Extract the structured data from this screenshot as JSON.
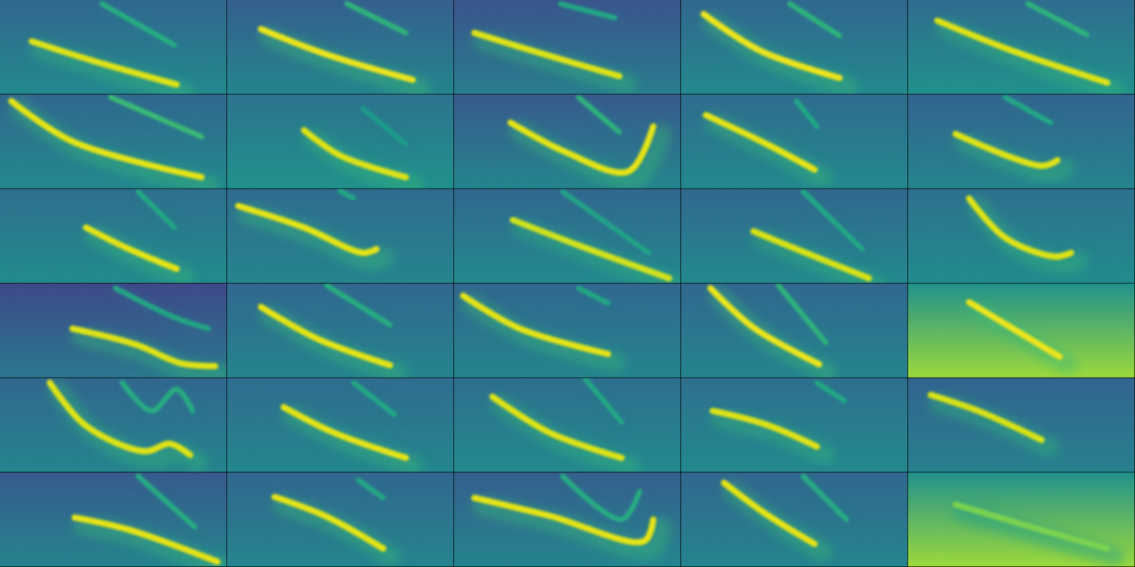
{
  "chart_data": {
    "type": "spectrogram_grid",
    "columns": 5,
    "xlim": [
      0,
      1
    ],
    "ylim": [
      0,
      1
    ],
    "clim": [
      0,
      1
    ],
    "tick_labels": false,
    "panels": [
      {
        "ground": [
          0.33,
          0.47
        ],
        "traces": [
          {
            "intensity": 0.95,
            "x": [
              0.14,
              0.4,
              0.78
            ],
            "y": [
              0.56,
              0.36,
              0.1
            ]
          },
          {
            "intensity": 0.62,
            "x": [
              0.45,
              0.77
            ],
            "y": [
              0.96,
              0.52
            ]
          }
        ]
      },
      {
        "ground": [
          0.3,
          0.45
        ],
        "traces": [
          {
            "intensity": 0.97,
            "x": [
              0.15,
              0.44,
              0.82
            ],
            "y": [
              0.69,
              0.42,
              0.15
            ]
          },
          {
            "intensity": 0.65,
            "x": [
              0.53,
              0.79
            ],
            "y": [
              0.96,
              0.65
            ]
          }
        ]
      },
      {
        "ground": [
          0.26,
          0.42
        ],
        "traces": [
          {
            "intensity": 0.95,
            "x": [
              0.09,
              0.4,
              0.73
            ],
            "y": [
              0.65,
              0.42,
              0.19
            ]
          },
          {
            "intensity": 0.6,
            "x": [
              0.47,
              0.71
            ],
            "y": [
              0.96,
              0.81
            ]
          }
        ]
      },
      {
        "ground": [
          0.33,
          0.47
        ],
        "traces": [
          {
            "intensity": 0.97,
            "x": [
              0.1,
              0.35,
              0.7
            ],
            "y": [
              0.85,
              0.46,
              0.17
            ]
          },
          {
            "intensity": 0.65,
            "x": [
              0.48,
              0.7
            ],
            "y": [
              0.96,
              0.62
            ]
          }
        ]
      },
      {
        "ground": [
          0.35,
          0.5
        ],
        "traces": [
          {
            "intensity": 0.95,
            "x": [
              0.13,
              0.46,
              0.88
            ],
            "y": [
              0.78,
              0.46,
              0.12
            ]
          },
          {
            "intensity": 0.65,
            "x": [
              0.53,
              0.79
            ],
            "y": [
              0.96,
              0.63
            ]
          }
        ]
      },
      {
        "ground": [
          0.33,
          0.47
        ],
        "traces": [
          {
            "intensity": 0.96,
            "x": [
              0.05,
              0.32,
              0.89
            ],
            "y": [
              0.93,
              0.5,
              0.12
            ]
          },
          {
            "intensity": 0.68,
            "x": [
              0.49,
              0.89
            ],
            "y": [
              0.97,
              0.55
            ]
          }
        ]
      },
      {
        "ground": [
          0.38,
          0.5
        ],
        "traces": [
          {
            "intensity": 0.95,
            "x": [
              0.34,
              0.5,
              0.79
            ],
            "y": [
              0.62,
              0.35,
              0.12
            ]
          },
          {
            "intensity": 0.55,
            "x": [
              0.6,
              0.79
            ],
            "y": [
              0.85,
              0.47
            ]
          }
        ]
      },
      {
        "ground": [
          0.28,
          0.45
        ],
        "traces": [
          {
            "intensity": 0.96,
            "x": [
              0.25,
              0.49,
              0.77,
              0.88
            ],
            "y": [
              0.7,
              0.39,
              0.18,
              0.66
            ]
          },
          {
            "intensity": 0.65,
            "x": [
              0.55,
              0.73
            ],
            "y": [
              0.97,
              0.6
            ]
          }
        ]
      },
      {
        "ground": [
          0.35,
          0.47
        ],
        "traces": [
          {
            "intensity": 0.96,
            "x": [
              0.11,
              0.38,
              0.59
            ],
            "y": [
              0.78,
              0.47,
              0.2
            ]
          },
          {
            "intensity": 0.6,
            "x": [
              0.51,
              0.6
            ],
            "y": [
              0.93,
              0.66
            ]
          }
        ]
      },
      {
        "ground": [
          0.32,
          0.45
        ],
        "traces": [
          {
            "intensity": 0.95,
            "x": [
              0.21,
              0.59,
              0.66
            ],
            "y": [
              0.58,
              0.24,
              0.3
            ]
          },
          {
            "intensity": 0.6,
            "x": [
              0.43,
              0.63
            ],
            "y": [
              0.97,
              0.7
            ]
          }
        ]
      },
      {
        "ground": [
          0.36,
          0.48
        ],
        "traces": [
          {
            "intensity": 0.96,
            "x": [
              0.38,
              0.57,
              0.78
            ],
            "y": [
              0.59,
              0.36,
              0.15
            ]
          },
          {
            "intensity": 0.6,
            "x": [
              0.61,
              0.77
            ],
            "y": [
              0.97,
              0.59
            ]
          }
        ]
      },
      {
        "ground": [
          0.35,
          0.45
        ],
        "traces": [
          {
            "intensity": 0.96,
            "x": [
              0.05,
              0.34,
              0.6,
              0.66
            ],
            "y": [
              0.82,
              0.59,
              0.32,
              0.36
            ]
          },
          {
            "intensity": 0.6,
            "x": [
              0.5,
              0.56
            ],
            "y": [
              0.98,
              0.9
            ]
          }
        ]
      },
      {
        "ground": [
          0.33,
          0.47
        ],
        "traces": [
          {
            "intensity": 0.93,
            "x": [
              0.26,
              0.55,
              0.95
            ],
            "y": [
              0.67,
              0.4,
              0.05
            ]
          },
          {
            "intensity": 0.58,
            "x": [
              0.48,
              0.86
            ],
            "y": [
              0.97,
              0.32
            ]
          }
        ]
      },
      {
        "ground": [
          0.33,
          0.47
        ],
        "traces": [
          {
            "intensity": 0.94,
            "x": [
              0.32,
              0.51,
              0.83
            ],
            "y": [
              0.55,
              0.36,
              0.05
            ]
          },
          {
            "intensity": 0.6,
            "x": [
              0.54,
              0.8
            ],
            "y": [
              0.97,
              0.36
            ]
          }
        ]
      },
      {
        "ground": [
          0.37,
          0.48
        ],
        "traces": [
          {
            "intensity": 0.95,
            "x": [
              0.27,
              0.43,
              0.65,
              0.72
            ],
            "y": [
              0.9,
              0.48,
              0.28,
              0.32
            ]
          }
        ]
      },
      {
        "ground": [
          0.22,
          0.4
        ],
        "traces": [
          {
            "intensity": 0.95,
            "x": [
              0.32,
              0.6,
              0.8,
              0.95
            ],
            "y": [
              0.52,
              0.35,
              0.15,
              0.12
            ]
          },
          {
            "intensity": 0.6,
            "x": [
              0.51,
              0.77,
              0.92
            ],
            "y": [
              0.95,
              0.64,
              0.52
            ]
          }
        ]
      },
      {
        "ground": [
          0.33,
          0.45
        ],
        "traces": [
          {
            "intensity": 0.96,
            "x": [
              0.15,
              0.4,
              0.72
            ],
            "y": [
              0.75,
              0.41,
              0.13
            ]
          },
          {
            "intensity": 0.62,
            "x": [
              0.44,
              0.72
            ],
            "y": [
              0.98,
              0.56
            ]
          }
        ]
      },
      {
        "ground": [
          0.33,
          0.45
        ],
        "traces": [
          {
            "intensity": 0.96,
            "x": [
              0.04,
              0.29,
              0.68
            ],
            "y": [
              0.87,
              0.52,
              0.25
            ]
          },
          {
            "intensity": 0.6,
            "x": [
              0.55,
              0.68
            ],
            "y": [
              0.95,
              0.79
            ]
          }
        ]
      },
      {
        "ground": [
          0.33,
          0.45
        ],
        "traces": [
          {
            "intensity": 0.97,
            "x": [
              0.13,
              0.32,
              0.61
            ],
            "y": [
              0.95,
              0.53,
              0.14
            ]
          },
          {
            "intensity": 0.65,
            "x": [
              0.43,
              0.64
            ],
            "y": [
              0.98,
              0.37
            ]
          }
        ]
      },
      {
        "ground": [
          0.5,
          0.85
        ],
        "traces": [
          {
            "intensity": 0.97,
            "x": [
              0.27,
              0.67
            ],
            "y": [
              0.8,
              0.22
            ]
          }
        ]
      },
      {
        "ground": [
          0.33,
          0.45
        ],
        "traces": [
          {
            "intensity": 0.95,
            "x": [
              0.22,
              0.38,
              0.64,
              0.75,
              0.84
            ],
            "y": [
              0.95,
              0.49,
              0.22,
              0.3,
              0.18
            ]
          },
          {
            "intensity": 0.62,
            "x": [
              0.54,
              0.67,
              0.78,
              0.85
            ],
            "y": [
              0.95,
              0.65,
              0.88,
              0.65
            ]
          }
        ]
      },
      {
        "ground": [
          0.35,
          0.46
        ],
        "traces": [
          {
            "intensity": 0.96,
            "x": [
              0.25,
              0.47,
              0.79
            ],
            "y": [
              0.69,
              0.42,
              0.15
            ]
          },
          {
            "intensity": 0.6,
            "x": [
              0.56,
              0.74
            ],
            "y": [
              0.95,
              0.61
            ]
          }
        ]
      },
      {
        "ground": [
          0.36,
          0.47
        ],
        "traces": [
          {
            "intensity": 0.95,
            "x": [
              0.17,
              0.42,
              0.74
            ],
            "y": [
              0.8,
              0.42,
              0.15
            ]
          },
          {
            "intensity": 0.6,
            "x": [
              0.58,
              0.74
            ],
            "y": [
              0.99,
              0.53
            ]
          }
        ]
      },
      {
        "ground": [
          0.36,
          0.47
        ],
        "traces": [
          {
            "intensity": 0.95,
            "x": [
              0.14,
              0.38,
              0.6
            ],
            "y": [
              0.65,
              0.5,
              0.27
            ]
          },
          {
            "intensity": 0.6,
            "x": [
              0.6,
              0.72
            ],
            "y": [
              0.95,
              0.76
            ]
          }
        ]
      },
      {
        "ground": [
          0.32,
          0.43
        ],
        "traces": [
          {
            "intensity": 0.94,
            "x": [
              0.1,
              0.32,
              0.59
            ],
            "y": [
              0.82,
              0.64,
              0.34
            ]
          }
        ]
      },
      {
        "ground": [
          0.28,
          0.45
        ],
        "traces": [
          {
            "intensity": 0.96,
            "x": [
              0.33,
              0.57,
              0.96
            ],
            "y": [
              0.52,
              0.39,
              0.05
            ]
          },
          {
            "intensity": 0.62,
            "x": [
              0.61,
              0.86
            ],
            "y": [
              0.96,
              0.42
            ]
          }
        ]
      },
      {
        "ground": [
          0.33,
          0.45
        ],
        "traces": [
          {
            "intensity": 0.96,
            "x": [
              0.21,
              0.44,
              0.69
            ],
            "y": [
              0.74,
              0.53,
              0.19
            ]
          },
          {
            "intensity": 0.6,
            "x": [
              0.58,
              0.69
            ],
            "y": [
              0.92,
              0.73
            ]
          }
        ]
      },
      {
        "ground": [
          0.3,
          0.45
        ],
        "traces": [
          {
            "intensity": 0.96,
            "x": [
              0.09,
              0.42,
              0.84,
              0.88
            ],
            "y": [
              0.73,
              0.54,
              0.27,
              0.5
            ]
          },
          {
            "intensity": 0.62,
            "x": [
              0.48,
              0.74,
              0.82
            ],
            "y": [
              0.96,
              0.5,
              0.8
            ]
          }
        ]
      },
      {
        "ground": [
          0.33,
          0.45
        ],
        "traces": [
          {
            "intensity": 0.96,
            "x": [
              0.19,
              0.38,
              0.59
            ],
            "y": [
              0.89,
              0.55,
              0.24
            ]
          },
          {
            "intensity": 0.62,
            "x": [
              0.54,
              0.73
            ],
            "y": [
              0.96,
              0.5
            ]
          }
        ]
      },
      {
        "ground": [
          0.5,
          0.85
        ],
        "traces": [
          {
            "intensity": 0.8,
            "x": [
              0.21,
              0.53,
              0.88
            ],
            "y": [
              0.66,
              0.43,
              0.19
            ]
          }
        ]
      }
    ]
  }
}
